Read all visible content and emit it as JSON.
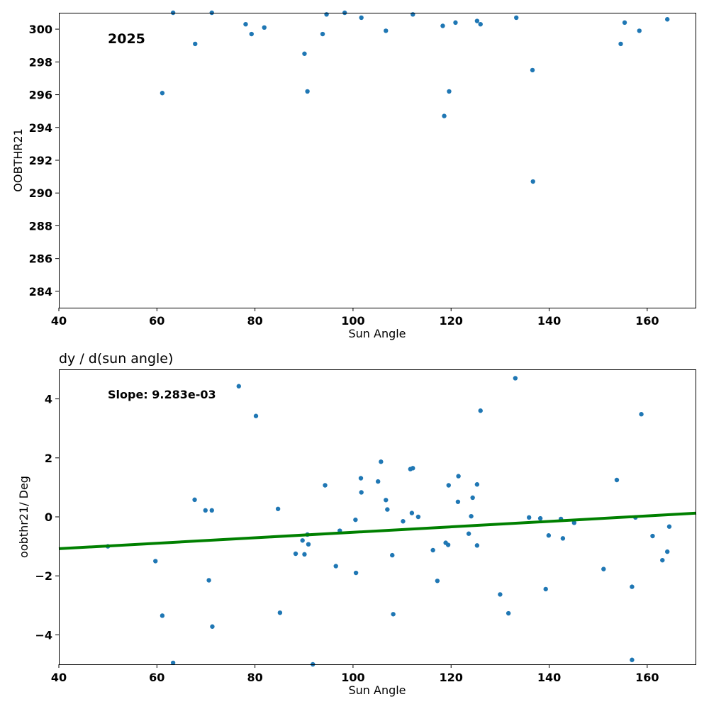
{
  "chart_data": [
    {
      "type": "scatter",
      "title": "",
      "annotation": "2025",
      "xlabel": "Sun Angle",
      "ylabel": "OOBTHR21",
      "xlim": [
        40,
        170
      ],
      "ylim": [
        283,
        301
      ],
      "xticks": [
        40,
        60,
        80,
        100,
        120,
        140,
        160
      ],
      "yticks": [
        284,
        286,
        288,
        290,
        292,
        294,
        296,
        298,
        300
      ],
      "grid": false,
      "points": [
        {
          "x": 61.1,
          "y": 296.1
        },
        {
          "x": 63.3,
          "y": 301.0
        },
        {
          "x": 67.8,
          "y": 299.1
        },
        {
          "x": 71.2,
          "y": 301.0
        },
        {
          "x": 78.1,
          "y": 300.3
        },
        {
          "x": 79.3,
          "y": 299.7
        },
        {
          "x": 81.9,
          "y": 300.1
        },
        {
          "x": 90.1,
          "y": 298.5
        },
        {
          "x": 90.7,
          "y": 296.2
        },
        {
          "x": 93.8,
          "y": 299.7
        },
        {
          "x": 94.6,
          "y": 300.9
        },
        {
          "x": 98.3,
          "y": 301.0
        },
        {
          "x": 101.7,
          "y": 300.7
        },
        {
          "x": 106.7,
          "y": 299.9
        },
        {
          "x": 112.2,
          "y": 300.9
        },
        {
          "x": 118.3,
          "y": 300.2
        },
        {
          "x": 118.6,
          "y": 294.7
        },
        {
          "x": 119.6,
          "y": 296.2
        },
        {
          "x": 120.9,
          "y": 300.4
        },
        {
          "x": 125.3,
          "y": 300.5
        },
        {
          "x": 126.0,
          "y": 300.3
        },
        {
          "x": 133.3,
          "y": 300.7
        },
        {
          "x": 136.6,
          "y": 297.5
        },
        {
          "x": 136.7,
          "y": 290.7
        },
        {
          "x": 154.6,
          "y": 299.1
        },
        {
          "x": 155.4,
          "y": 300.4
        },
        {
          "x": 158.4,
          "y": 299.9
        },
        {
          "x": 164.1,
          "y": 300.6
        }
      ]
    },
    {
      "type": "scatter",
      "title": "dy / d(sun angle)",
      "annotation": "Slope: 9.283e-03",
      "xlabel": "Sun Angle",
      "ylabel": "oobthr21/ Deg",
      "xlim": [
        40,
        170
      ],
      "ylim": [
        -5,
        5
      ],
      "xticks": [
        40,
        60,
        80,
        100,
        120,
        140,
        160
      ],
      "yticks": [
        -4,
        -2,
        0,
        2,
        4
      ],
      "grid": false,
      "fit_line": {
        "slope": 0.009283,
        "x": [
          40,
          170
        ],
        "y": [
          -1.08,
          0.125
        ],
        "color": "#008000"
      },
      "points": [
        {
          "x": 50.0,
          "y": -1.0
        },
        {
          "x": 59.7,
          "y": -1.5
        },
        {
          "x": 61.1,
          "y": -3.35
        },
        {
          "x": 63.3,
          "y": -4.95
        },
        {
          "x": 67.7,
          "y": 0.58
        },
        {
          "x": 69.9,
          "y": 0.22
        },
        {
          "x": 70.6,
          "y": -2.15
        },
        {
          "x": 71.2,
          "y": 0.22
        },
        {
          "x": 71.3,
          "y": -3.72
        },
        {
          "x": 76.7,
          "y": 4.43
        },
        {
          "x": 80.2,
          "y": 3.42
        },
        {
          "x": 84.7,
          "y": 0.27
        },
        {
          "x": 85.1,
          "y": -3.25
        },
        {
          "x": 88.3,
          "y": -1.25
        },
        {
          "x": 89.7,
          "y": -0.8
        },
        {
          "x": 90.1,
          "y": -1.27
        },
        {
          "x": 90.7,
          "y": -0.6
        },
        {
          "x": 90.9,
          "y": -0.93
        },
        {
          "x": 91.8,
          "y": -5.0
        },
        {
          "x": 94.3,
          "y": 1.07
        },
        {
          "x": 96.5,
          "y": -1.67
        },
        {
          "x": 97.3,
          "y": -0.47
        },
        {
          "x": 100.5,
          "y": -0.1
        },
        {
          "x": 100.6,
          "y": -1.9
        },
        {
          "x": 101.6,
          "y": 1.31
        },
        {
          "x": 101.7,
          "y": 0.83
        },
        {
          "x": 105.1,
          "y": 1.2
        },
        {
          "x": 105.7,
          "y": 1.87
        },
        {
          "x": 106.7,
          "y": 0.57
        },
        {
          "x": 107.0,
          "y": 0.25
        },
        {
          "x": 108.0,
          "y": -1.3
        },
        {
          "x": 108.2,
          "y": -3.3
        },
        {
          "x": 110.2,
          "y": -0.15
        },
        {
          "x": 111.7,
          "y": 1.62
        },
        {
          "x": 112.0,
          "y": 0.13
        },
        {
          "x": 112.2,
          "y": 1.65
        },
        {
          "x": 113.3,
          "y": 0.0
        },
        {
          "x": 116.3,
          "y": -1.13
        },
        {
          "x": 117.2,
          "y": -2.17
        },
        {
          "x": 118.9,
          "y": -0.88
        },
        {
          "x": 119.4,
          "y": -0.95
        },
        {
          "x": 119.5,
          "y": 1.07
        },
        {
          "x": 121.4,
          "y": 0.51
        },
        {
          "x": 121.5,
          "y": 1.38
        },
        {
          "x": 123.6,
          "y": -0.57
        },
        {
          "x": 124.1,
          "y": 0.02
        },
        {
          "x": 124.4,
          "y": 0.65
        },
        {
          "x": 125.3,
          "y": 1.1
        },
        {
          "x": 125.3,
          "y": -0.97
        },
        {
          "x": 126.0,
          "y": 3.6
        },
        {
          "x": 130.0,
          "y": -2.63
        },
        {
          "x": 131.7,
          "y": -3.27
        },
        {
          "x": 133.1,
          "y": 4.7
        },
        {
          "x": 135.9,
          "y": -0.02
        },
        {
          "x": 138.2,
          "y": -0.05
        },
        {
          "x": 139.3,
          "y": -2.45
        },
        {
          "x": 139.9,
          "y": -0.63
        },
        {
          "x": 142.4,
          "y": -0.07
        },
        {
          "x": 142.8,
          "y": -0.73
        },
        {
          "x": 145.1,
          "y": -0.2
        },
        {
          "x": 151.1,
          "y": -1.77
        },
        {
          "x": 153.8,
          "y": 1.25
        },
        {
          "x": 156.9,
          "y": -2.37
        },
        {
          "x": 156.9,
          "y": -4.85
        },
        {
          "x": 157.6,
          "y": -0.02
        },
        {
          "x": 158.8,
          "y": 3.48
        },
        {
          "x": 161.1,
          "y": -0.65
        },
        {
          "x": 163.1,
          "y": -1.47
        },
        {
          "x": 164.1,
          "y": -1.18
        },
        {
          "x": 164.5,
          "y": -0.33
        }
      ]
    }
  ]
}
